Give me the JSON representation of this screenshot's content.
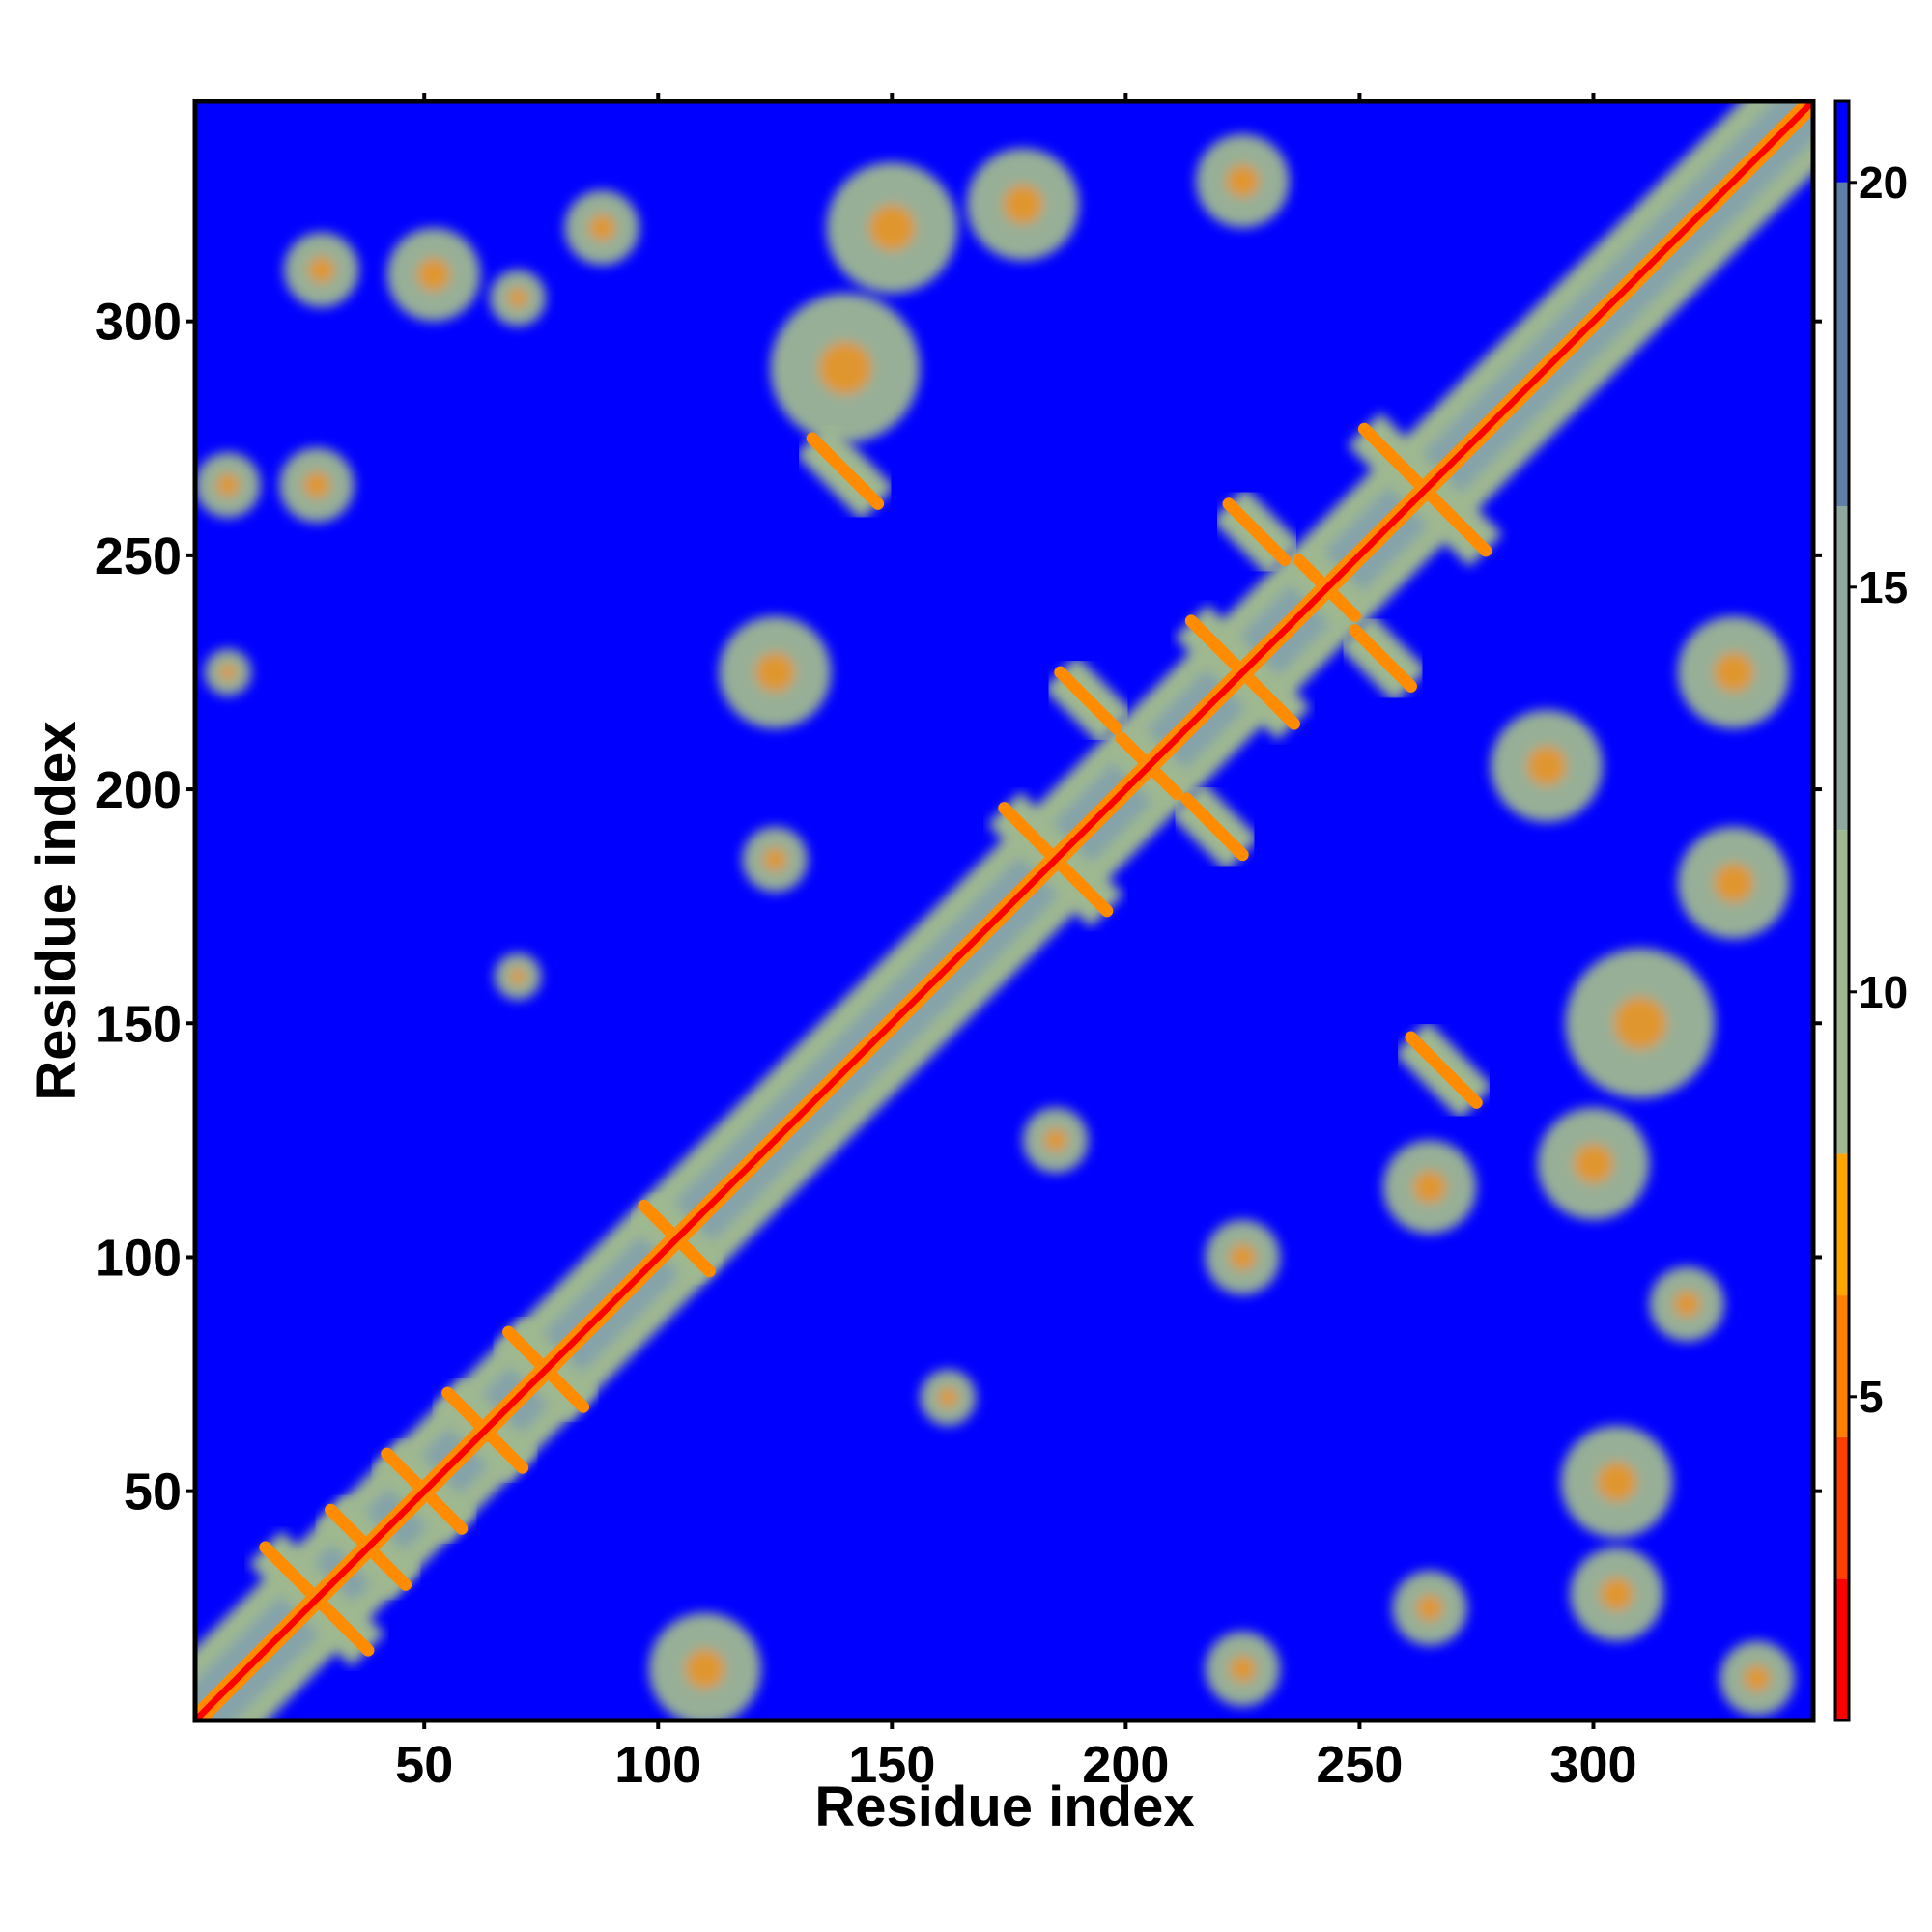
{
  "chart_data": {
    "type": "heatmap",
    "title": "",
    "xlabel": "Residue index",
    "ylabel": "Residue index",
    "xlim": [
      1,
      347
    ],
    "ylim": [
      1,
      347
    ],
    "x_ticks": [
      50,
      100,
      150,
      200,
      250,
      300
    ],
    "y_ticks": [
      50,
      100,
      150,
      200,
      250,
      300
    ],
    "colorbar": {
      "ticks": [
        5,
        10,
        15,
        20
      ],
      "range": [
        1,
        21
      ],
      "bands": [
        {
          "from": 1,
          "to": 8,
          "colors": [
            "#ff0000",
            "#ff4000",
            "#ff8000",
            "#ffa500"
          ]
        },
        {
          "from": 8,
          "to": 16,
          "colors": [
            "#9fb890",
            "#8fa8a0"
          ]
        },
        {
          "from": 16,
          "to": 20,
          "color": "#5f7fa8"
        },
        {
          "from": 20,
          "to": 21,
          "color": "#0000ff"
        }
      ]
    },
    "colors": {
      "background": "#0000ff",
      "contact_near": "#ff0000",
      "contact_mid": "#ff8c00",
      "contact_far": "#9fb890",
      "halo": "#7f9fb0"
    },
    "diagonal": "residue i vs residue i, distance 0",
    "contact_features": [
      {
        "kind": "antidiagonal",
        "center": [
          27,
          27
        ],
        "length": 22
      },
      {
        "kind": "antidiagonal",
        "center": [
          38,
          38
        ],
        "length": 16
      },
      {
        "kind": "antidiagonal",
        "center": [
          50,
          50
        ],
        "length": 16
      },
      {
        "kind": "antidiagonal",
        "center": [
          63,
          63
        ],
        "length": 16
      },
      {
        "kind": "antidiagonal",
        "center": [
          76,
          76
        ],
        "length": 16
      },
      {
        "kind": "antidiagonal",
        "center": [
          104,
          104
        ],
        "length": 14
      },
      {
        "kind": "antidiagonal",
        "center": [
          185,
          185
        ],
        "length": 22
      },
      {
        "kind": "antidiagonal",
        "center": [
          205,
          205
        ],
        "length": 12
      },
      {
        "kind": "antidiagonal",
        "center": [
          225,
          225
        ],
        "length": 22
      },
      {
        "kind": "antidiagonal",
        "center": [
          243,
          243
        ],
        "length": 12
      },
      {
        "kind": "antidiagonal",
        "center": [
          264,
          264
        ],
        "length": 26
      },
      {
        "kind": "antidiagonal",
        "center": [
          140,
          268
        ],
        "length": 14
      },
      {
        "kind": "antidiagonal",
        "center": [
          268,
          140
        ],
        "length": 14
      },
      {
        "kind": "antidiagonal",
        "center": [
          228,
          255
        ],
        "length": 12
      },
      {
        "kind": "antidiagonal",
        "center": [
          255,
          228
        ],
        "length": 12
      },
      {
        "kind": "antidiagonal",
        "center": [
          192,
          219
        ],
        "length": 12
      },
      {
        "kind": "antidiagonal",
        "center": [
          219,
          192
        ],
        "length": 12
      },
      {
        "kind": "blob",
        "center": [
          27,
          265
        ],
        "radius": 8
      },
      {
        "kind": "blob",
        "center": [
          8,
          265
        ],
        "radius": 7
      },
      {
        "kind": "blob",
        "center": [
          8,
          225
        ],
        "radius": 5
      },
      {
        "kind": "blob",
        "center": [
          28,
          311
        ],
        "radius": 8
      },
      {
        "kind": "blob",
        "center": [
          52,
          310
        ],
        "radius": 10
      },
      {
        "kind": "blob",
        "center": [
          70,
          305
        ],
        "radius": 6
      },
      {
        "kind": "blob",
        "center": [
          88,
          320
        ],
        "radius": 8
      },
      {
        "kind": "blob",
        "center": [
          150,
          320
        ],
        "radius": 14
      },
      {
        "kind": "blob",
        "center": [
          178,
          325
        ],
        "radius": 12
      },
      {
        "kind": "blob",
        "center": [
          225,
          330
        ],
        "radius": 10
      },
      {
        "kind": "blob",
        "center": [
          140,
          290
        ],
        "radius": 16
      },
      {
        "kind": "blob",
        "center": [
          300,
          120
        ],
        "radius": 12
      },
      {
        "kind": "blob",
        "center": [
          305,
          52
        ],
        "radius": 12
      },
      {
        "kind": "blob",
        "center": [
          305,
          28
        ],
        "radius": 10
      },
      {
        "kind": "blob",
        "center": [
          320,
          90
        ],
        "radius": 8
      },
      {
        "kind": "blob",
        "center": [
          162,
          70
        ],
        "radius": 6
      },
      {
        "kind": "blob",
        "center": [
          185,
          125
        ],
        "radius": 7
      },
      {
        "kind": "blob",
        "center": [
          70,
          160
        ],
        "radius": 5
      },
      {
        "kind": "blob",
        "center": [
          125,
          185
        ],
        "radius": 7
      },
      {
        "kind": "blob",
        "center": [
          330,
          180
        ],
        "radius": 12
      },
      {
        "kind": "blob",
        "center": [
          330,
          225
        ],
        "radius": 12
      },
      {
        "kind": "blob",
        "center": [
          335,
          10
        ],
        "radius": 8
      },
      {
        "kind": "blob",
        "center": [
          265,
          115
        ],
        "radius": 10
      },
      {
        "kind": "blob",
        "center": [
          265,
          25
        ],
        "radius": 8
      },
      {
        "kind": "blob",
        "center": [
          225,
          12
        ],
        "radius": 8
      },
      {
        "kind": "blob",
        "center": [
          225,
          100
        ],
        "radius": 8
      },
      {
        "kind": "blob",
        "center": [
          110,
          12
        ],
        "radius": 12
      },
      {
        "kind": "blob",
        "center": [
          125,
          225
        ],
        "radius": 12
      },
      {
        "kind": "blob",
        "center": [
          310,
          150
        ],
        "radius": 16
      },
      {
        "kind": "blob",
        "center": [
          290,
          205
        ],
        "radius": 12
      }
    ]
  }
}
